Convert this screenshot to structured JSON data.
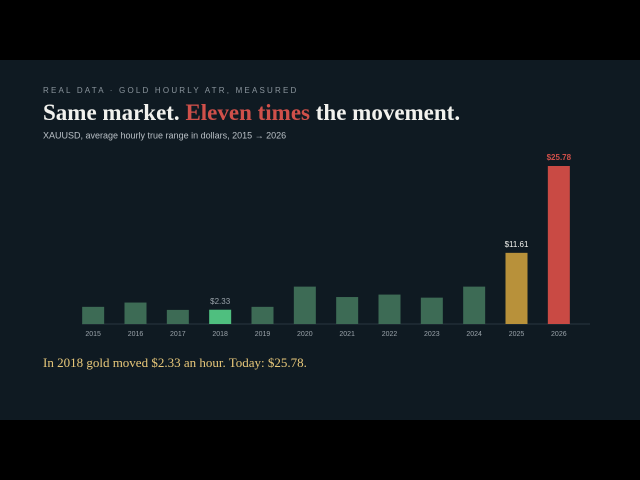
{
  "kicker": "REAL DATA · GOLD HOURLY ATR, MEASURED",
  "chart_data": {
    "type": "bar",
    "title": [
      "Same market.",
      "Eleven times",
      "the movement."
    ],
    "subtitle": "XAUUSD, average hourly true range in dollars, 2015 → 2026",
    "categories": [
      "2015",
      "2016",
      "2017",
      "2018",
      "2019",
      "2020",
      "2021",
      "2022",
      "2023",
      "2024",
      "2025",
      "2026"
    ],
    "values": [
      2.8,
      3.5,
      2.3,
      2.33,
      2.8,
      6.1,
      4.4,
      4.8,
      4.3,
      6.1,
      11.61,
      25.78
    ],
    "value_labels": [
      null,
      null,
      null,
      "$2.33",
      null,
      null,
      null,
      null,
      null,
      null,
      "$11.61",
      "$25.78"
    ],
    "colors": [
      "#3d6b55",
      "#3d6b55",
      "#3d6b55",
      "#4fbf7f",
      "#3d6b55",
      "#3d6b55",
      "#3d6b55",
      "#3d6b55",
      "#3d6b55",
      "#3d6b55",
      "#b8913a",
      "#c94a44"
    ],
    "label_colors": [
      null,
      null,
      null,
      "#9aa3aa",
      null,
      null,
      null,
      null,
      null,
      null,
      "#f2f2ee",
      "#d0504a"
    ]
  },
  "footer": "In 2018 gold moved $2.33 an hour. Today: $25.78."
}
